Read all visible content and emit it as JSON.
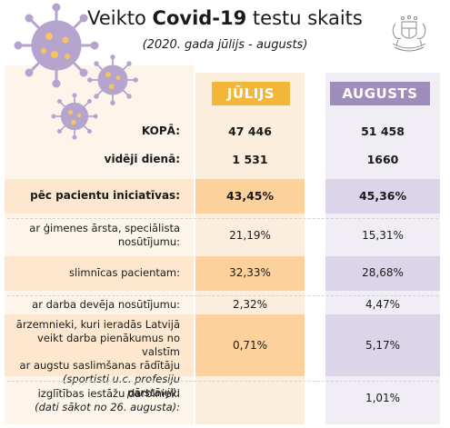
{
  "header": {
    "title_pre": "Veikto ",
    "title_bold": "Covid-19",
    "title_post": " testu skaits",
    "subtitle": "(2020. gada jūlijs - augusts)"
  },
  "columns": {
    "july": "JŪLIJS",
    "august": "AUGUSTS"
  },
  "rows": [
    {
      "label": "KOPĀ:",
      "july": "47 446",
      "august": "51 458"
    },
    {
      "label": "vidēji dienā:",
      "july": "1 531",
      "august": "1660"
    },
    {
      "label": "pēc pacientu iniciatīvas:",
      "july": "43,45%",
      "august": "45,36%"
    },
    {
      "label_l1": "ar ģimenes ārsta, speciālista",
      "label_l2": "nosūtījumu:",
      "july": "21,19%",
      "august": "15,31%"
    },
    {
      "label": "slimnīcas pacientam:",
      "july": "32,33%",
      "august": "28,68%"
    },
    {
      "label": "ar darba devēja nosūtījumu:",
      "july": "2,32%",
      "august": "4,47%"
    },
    {
      "label_l1": "ārzemnieki, kuri ieradās Latvijā",
      "label_l2": "veikt darba pienākumus no valstīm",
      "label_l3": "ar augstu saslimšanas rādītāju",
      "label_l4": "(sportisti u.c. profesiju pārstāvji):",
      "july": "0,71%",
      "august": "5,17%"
    },
    {
      "label_l1": "izglītības iestāžu darbinieki",
      "label_l2": "(dati sākot no 26. augusta):",
      "july": "",
      "august": "1,01%"
    }
  ],
  "colors": {
    "july_accent": "#f2b638",
    "august_accent": "#9e8cba",
    "virus": "#b4a4ce",
    "virus_dot": "#f5c45e"
  },
  "icons": [
    "virus-illustration",
    "latvia-coat-of-arms-icon"
  ]
}
